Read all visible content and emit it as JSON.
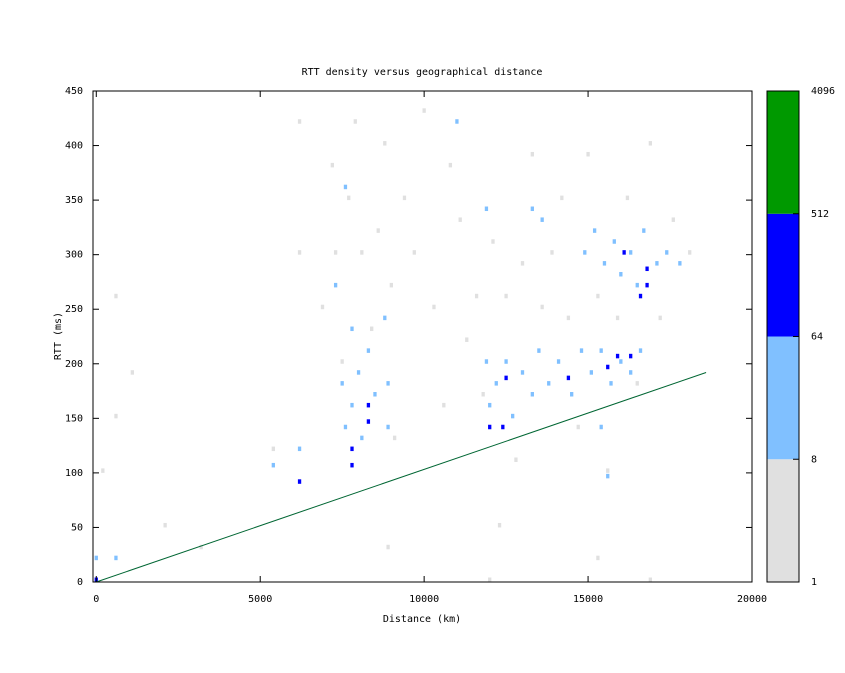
{
  "chart_data": {
    "type": "heatmap",
    "title": "RTT density versus geographical distance",
    "x_label": "Distance (km)",
    "y_label": "RTT (ms)",
    "xlim": [
      -100,
      20000
    ],
    "ylim": [
      0,
      450
    ],
    "xticks": [
      0,
      5000,
      10000,
      15000,
      20000
    ],
    "yticks": [
      0,
      50,
      100,
      150,
      200,
      250,
      300,
      350,
      400,
      450
    ],
    "colorbar": {
      "log": true,
      "ticks": [
        1,
        8,
        64,
        512,
        4096
      ],
      "colors": [
        "#e0e0e0",
        "#80c0ff",
        "#0000ff",
        "#009900"
      ]
    },
    "cells": [
      [
        200,
        100,
        3
      ],
      [
        600,
        260,
        3
      ],
      [
        600,
        150,
        3
      ],
      [
        1100,
        190,
        3
      ],
      [
        2100,
        50,
        3
      ],
      [
        3200,
        30,
        3
      ],
      [
        5400,
        120,
        3
      ],
      [
        6200,
        420,
        3
      ],
      [
        6200,
        300,
        3
      ],
      [
        6900,
        250,
        3
      ],
      [
        7200,
        380,
        3
      ],
      [
        7300,
        300,
        3
      ],
      [
        7500,
        200,
        3
      ],
      [
        7700,
        350,
        3
      ],
      [
        7900,
        420,
        3
      ],
      [
        8100,
        300,
        3
      ],
      [
        8400,
        230,
        3
      ],
      [
        8600,
        320,
        3
      ],
      [
        8800,
        400,
        3
      ],
      [
        9000,
        270,
        3
      ],
      [
        9100,
        130,
        3
      ],
      [
        9400,
        350,
        3
      ],
      [
        9700,
        300,
        3
      ],
      [
        10000,
        430,
        3
      ],
      [
        10300,
        250,
        3
      ],
      [
        10600,
        160,
        3
      ],
      [
        10800,
        380,
        3
      ],
      [
        11100,
        330,
        3
      ],
      [
        11300,
        220,
        3
      ],
      [
        11600,
        260,
        3
      ],
      [
        11800,
        170,
        3
      ],
      [
        12100,
        310,
        3
      ],
      [
        12500,
        260,
        3
      ],
      [
        12800,
        110,
        3
      ],
      [
        13000,
        290,
        3
      ],
      [
        13300,
        390,
        3
      ],
      [
        13600,
        250,
        3
      ],
      [
        13900,
        300,
        3
      ],
      [
        14200,
        350,
        3
      ],
      [
        14400,
        240,
        3
      ],
      [
        14700,
        140,
        3
      ],
      [
        15000,
        390,
        3
      ],
      [
        15300,
        260,
        3
      ],
      [
        15600,
        100,
        3
      ],
      [
        15900,
        240,
        3
      ],
      [
        16200,
        350,
        3
      ],
      [
        16500,
        180,
        3
      ],
      [
        16900,
        400,
        3
      ],
      [
        17200,
        240,
        3
      ],
      [
        17600,
        330,
        3
      ],
      [
        18100,
        300,
        3
      ],
      [
        12300,
        50,
        3
      ],
      [
        15300,
        20,
        3
      ],
      [
        8900,
        30,
        3
      ],
      [
        12000,
        0,
        3
      ],
      [
        16900,
        0,
        3
      ],
      [
        7300,
        270,
        20
      ],
      [
        7500,
        180,
        20
      ],
      [
        7600,
        140,
        20
      ],
      [
        7800,
        230,
        20
      ],
      [
        7800,
        160,
        20
      ],
      [
        8000,
        190,
        20
      ],
      [
        8100,
        130,
        20
      ],
      [
        8300,
        210,
        20
      ],
      [
        8500,
        170,
        20
      ],
      [
        8800,
        240,
        20
      ],
      [
        8900,
        180,
        20
      ],
      [
        8900,
        140,
        20
      ],
      [
        6200,
        120,
        20
      ],
      [
        5400,
        105,
        20
      ],
      [
        11900,
        200,
        20
      ],
      [
        12000,
        160,
        20
      ],
      [
        12200,
        180,
        20
      ],
      [
        12500,
        200,
        20
      ],
      [
        12700,
        150,
        20
      ],
      [
        13000,
        190,
        20
      ],
      [
        13300,
        170,
        20
      ],
      [
        13500,
        210,
        20
      ],
      [
        13800,
        180,
        20
      ],
      [
        14100,
        200,
        20
      ],
      [
        14500,
        170,
        20
      ],
      [
        14800,
        210,
        20
      ],
      [
        15100,
        190,
        20
      ],
      [
        15400,
        210,
        20
      ],
      [
        15700,
        180,
        20
      ],
      [
        16000,
        200,
        20
      ],
      [
        16300,
        190,
        20
      ],
      [
        16600,
        210,
        20
      ],
      [
        15400,
        140,
        20
      ],
      [
        14900,
        300,
        20
      ],
      [
        15200,
        320,
        20
      ],
      [
        15500,
        290,
        20
      ],
      [
        15800,
        310,
        20
      ],
      [
        16000,
        280,
        20
      ],
      [
        16300,
        300,
        20
      ],
      [
        16500,
        270,
        20
      ],
      [
        16700,
        320,
        20
      ],
      [
        17100,
        290,
        20
      ],
      [
        17400,
        300,
        20
      ],
      [
        17800,
        290,
        20
      ],
      [
        13300,
        340,
        20
      ],
      [
        13600,
        330,
        20
      ],
      [
        11900,
        340,
        20
      ],
      [
        11000,
        420,
        20
      ],
      [
        7600,
        360,
        20
      ],
      [
        0,
        20,
        20
      ],
      [
        600,
        20,
        20
      ],
      [
        15600,
        95,
        20
      ],
      [
        0,
        0,
        200
      ],
      [
        7800,
        105,
        100
      ],
      [
        7800,
        120,
        100
      ],
      [
        8300,
        145,
        100
      ],
      [
        8300,
        160,
        100
      ],
      [
        6200,
        90,
        100
      ],
      [
        12000,
        140,
        100
      ],
      [
        12400,
        140,
        100
      ],
      [
        12500,
        185,
        100
      ],
      [
        14400,
        185,
        100
      ],
      [
        15600,
        195,
        100
      ],
      [
        15900,
        205,
        100
      ],
      [
        16300,
        205,
        100
      ],
      [
        16100,
        300,
        100
      ],
      [
        16800,
        270,
        100
      ],
      [
        16800,
        285,
        100
      ],
      [
        16600,
        260,
        100
      ]
    ],
    "line": {
      "x": [
        0,
        18600
      ],
      "y": [
        0,
        192
      ],
      "color": "#006633"
    }
  }
}
